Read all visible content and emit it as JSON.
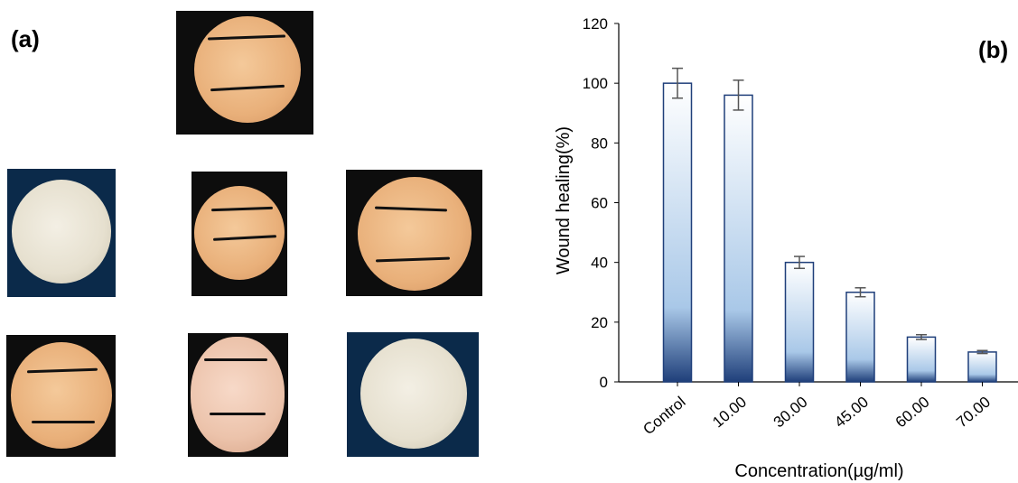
{
  "panels": {
    "a_label": "(a)",
    "b_label": "(b)"
  },
  "chart_data": {
    "type": "bar",
    "categories": [
      "Control",
      "10.00",
      "30.00",
      "45.00",
      "60.00",
      "70.00"
    ],
    "values": [
      100,
      96,
      40,
      30,
      15,
      10
    ],
    "errors": [
      5,
      5,
      2,
      1.5,
      0.8,
      0.5
    ],
    "xlabel": "Concentration(µg/ml)",
    "ylabel": "Wound healing(%)",
    "ylim": [
      0,
      120
    ],
    "yticks": [
      0,
      20,
      40,
      60,
      80,
      100,
      120
    ],
    "grid": false,
    "colors": {
      "bar_top": "#ffffff",
      "bar_mid": "#a9c8e8",
      "bar_bottom": "#1f3f7a",
      "bar_edge": "#1f3f7a",
      "error": "#555555",
      "ylabel": "#7f7f7f"
    }
  }
}
